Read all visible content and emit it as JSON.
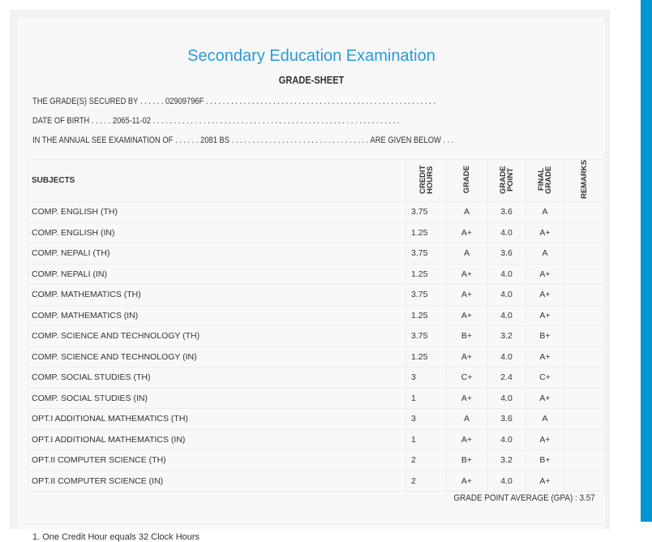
{
  "header": {
    "title": "Secondary Education Examination",
    "subtitle": "GRADE-SHEET"
  },
  "info": {
    "secured_by": "THE GRADE(S) SECURED BY . . . . . . 02909796F . . . . . . . . . . . . . . . . . . . . . . . . . . . . . . . . . . . . . . . . . . . . . . . . . . . . . . .",
    "dob": "DATE OF BIRTH . . . . . 2065-11-02 . . . . . . . . . . . . . . . . . . . . . . . . . . . . . . . . . . . . . . . . . . . . . . . . . . . . . . . . . . .",
    "exam": "IN THE ANNUAL SEE EXAMINATION OF . . . . . . 2081 BS . . . . . . . . . . . . . . . . . . . . . . . . . . . . . . . . . ARE GIVEN BELOW . . ."
  },
  "table": {
    "headers": [
      "SUBJECTS",
      "CREDIT HOURS",
      "GRADE",
      "GRADE POINT",
      "FINAL GRADE",
      "REMARKS"
    ],
    "rows": [
      [
        "COMP. ENGLISH (TH)",
        "3.75",
        "A",
        "3.6",
        "A"
      ],
      [
        "COMP. ENGLISH (IN)",
        "1.25",
        "A+",
        "4.0",
        "A+"
      ],
      [
        "COMP. NEPALI (TH)",
        "3.75",
        "A",
        "3.6",
        "A"
      ],
      [
        "COMP. NEPALI (IN)",
        "1.25",
        "A+",
        "4.0",
        "A+"
      ],
      [
        "COMP. MATHEMATICS (TH)",
        "3.75",
        "A+",
        "4.0",
        "A+"
      ],
      [
        "COMP. MATHEMATICS (IN)",
        "1.25",
        "A+",
        "4.0",
        "A+"
      ],
      [
        "COMP. SCIENCE AND TECHNOLOGY (TH)",
        "3.75",
        "B+",
        "3.2",
        "B+"
      ],
      [
        "COMP. SCIENCE AND TECHNOLOGY (IN)",
        "1.25",
        "A+",
        "4.0",
        "A+"
      ],
      [
        "COMP. SOCIAL STUDIES (TH)",
        "3",
        "C+",
        "2.4",
        "C+"
      ],
      [
        "COMP. SOCIAL STUDIES (IN)",
        "1",
        "A+",
        "4.0",
        "A+"
      ],
      [
        "OPT.I ADDITIONAL MATHEMATICS (TH)",
        "3",
        "A",
        "3.6",
        "A"
      ],
      [
        "OPT.I ADDITIONAL MATHEMATICS (IN)",
        "1",
        "A+",
        "4.0",
        "A+"
      ],
      [
        "OPT.II COMPUTER SCIENCE (TH)",
        "2",
        "B+",
        "3.2",
        "B+"
      ],
      [
        "OPT.II COMPUTER SCIENCE (IN)",
        "2",
        "A+",
        "4.0",
        "A+"
      ]
    ]
  },
  "gpa": "GRADE POINT AVERAGE (GPA) : 3.57",
  "note": "1. One Credit Hour equals 32 Clock Hours",
  "colors": {
    "title": "#2a9ad6",
    "sidebar": "#0396d3"
  }
}
